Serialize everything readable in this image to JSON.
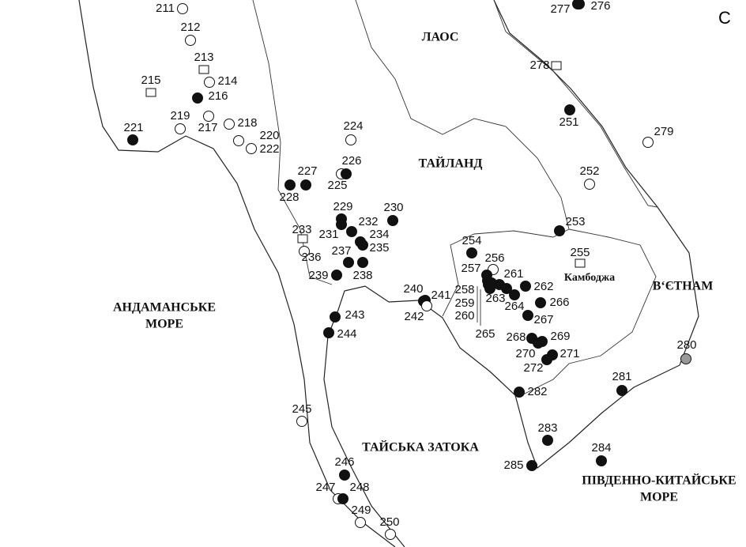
{
  "panel": "C",
  "regions": [
    {
      "lines": [
        "ЛАОС"
      ]
    },
    {
      "lines": [
        "ТАЙЛАНД"
      ]
    },
    {
      "lines": [
        "Камбоджа"
      ]
    },
    {
      "lines": [
        "В‘ЄТНАМ"
      ]
    },
    {
      "lines": [
        "АНДАМАНСЬКЕ",
        "МОРЕ"
      ]
    },
    {
      "lines": [
        "ТАЙСЬКА ЗАТОКА"
      ]
    },
    {
      "lines": [
        "ПІВДЕННО-КИТАЙСЬКЕ",
        "МОРЕ"
      ]
    }
  ],
  "sites": [
    {
      "label": "211",
      "kind": "open"
    },
    {
      "label": "212",
      "kind": "open"
    },
    {
      "label": "213",
      "kind": "square"
    },
    {
      "label": "214",
      "kind": "open"
    },
    {
      "label": "215",
      "kind": "square"
    },
    {
      "label": "216",
      "kind": "filled"
    },
    {
      "label": "217",
      "kind": "open"
    },
    {
      "label": "218",
      "kind": "open"
    },
    {
      "label": "219",
      "kind": "open"
    },
    {
      "label": "220",
      "kind": "open"
    },
    {
      "label": "221",
      "kind": "filled"
    },
    {
      "label": "222",
      "kind": "open"
    },
    {
      "label": "224",
      "kind": "open"
    },
    {
      "label": "225",
      "kind": "open"
    },
    {
      "label": "226",
      "kind": "filled"
    },
    {
      "label": "227",
      "kind": "filled"
    },
    {
      "label": "228",
      "kind": "filled"
    },
    {
      "label": "229",
      "kind": "filled"
    },
    {
      "label": "230",
      "kind": "filled"
    },
    {
      "label": "231",
      "kind": "filled"
    },
    {
      "label": "232",
      "kind": "filled"
    },
    {
      "label": "233",
      "kind": "square"
    },
    {
      "label": "234",
      "kind": "filled"
    },
    {
      "label": "235",
      "kind": "filled"
    },
    {
      "label": "236",
      "kind": "open"
    },
    {
      "label": "237",
      "kind": "filled"
    },
    {
      "label": "238",
      "kind": "filled"
    },
    {
      "label": "239",
      "kind": "filled"
    },
    {
      "label": "240",
      "kind": "filled"
    },
    {
      "label": "241",
      "kind": "filled"
    },
    {
      "label": "242",
      "kind": "open"
    },
    {
      "label": "243",
      "kind": "filled"
    },
    {
      "label": "244",
      "kind": "filled"
    },
    {
      "label": "245",
      "kind": "open"
    },
    {
      "label": "246",
      "kind": "filled"
    },
    {
      "label": "247",
      "kind": "open"
    },
    {
      "label": "248",
      "kind": "filled"
    },
    {
      "label": "249",
      "kind": "open"
    },
    {
      "label": "250",
      "kind": "open"
    },
    {
      "label": "251",
      "kind": "filled"
    },
    {
      "label": "252",
      "kind": "open"
    },
    {
      "label": "253",
      "kind": "filled"
    },
    {
      "label": "254",
      "kind": "filled"
    },
    {
      "label": "255",
      "kind": "square"
    },
    {
      "label": "256",
      "kind": "open"
    },
    {
      "label": "257",
      "kind": "filled"
    },
    {
      "label": "258",
      "kind": "filled"
    },
    {
      "label": "259",
      "kind": "filled"
    },
    {
      "label": "260",
      "kind": "filled"
    },
    {
      "label": "261",
      "kind": "filled"
    },
    {
      "label": "262",
      "kind": "filled"
    },
    {
      "label": "263",
      "kind": "filled"
    },
    {
      "label": "264",
      "kind": "filled"
    },
    {
      "label": "265",
      "kind": "filled"
    },
    {
      "label": "266",
      "kind": "filled"
    },
    {
      "label": "267",
      "kind": "filled"
    },
    {
      "label": "268",
      "kind": "filled"
    },
    {
      "label": "269",
      "kind": "filled"
    },
    {
      "label": "270",
      "kind": "filled"
    },
    {
      "label": "271",
      "kind": "filled"
    },
    {
      "label": "272",
      "kind": "filled"
    },
    {
      "label": "276",
      "kind": "filled"
    },
    {
      "label": "277",
      "kind": "filled"
    },
    {
      "label": "278",
      "kind": "square"
    },
    {
      "label": "279",
      "kind": "open"
    },
    {
      "label": "280",
      "kind": "grey"
    },
    {
      "label": "281",
      "kind": "filled"
    },
    {
      "label": "282",
      "kind": "filled"
    },
    {
      "label": "283",
      "kind": "filled"
    },
    {
      "label": "284",
      "kind": "filled"
    },
    {
      "label": "285",
      "kind": "filled"
    }
  ]
}
